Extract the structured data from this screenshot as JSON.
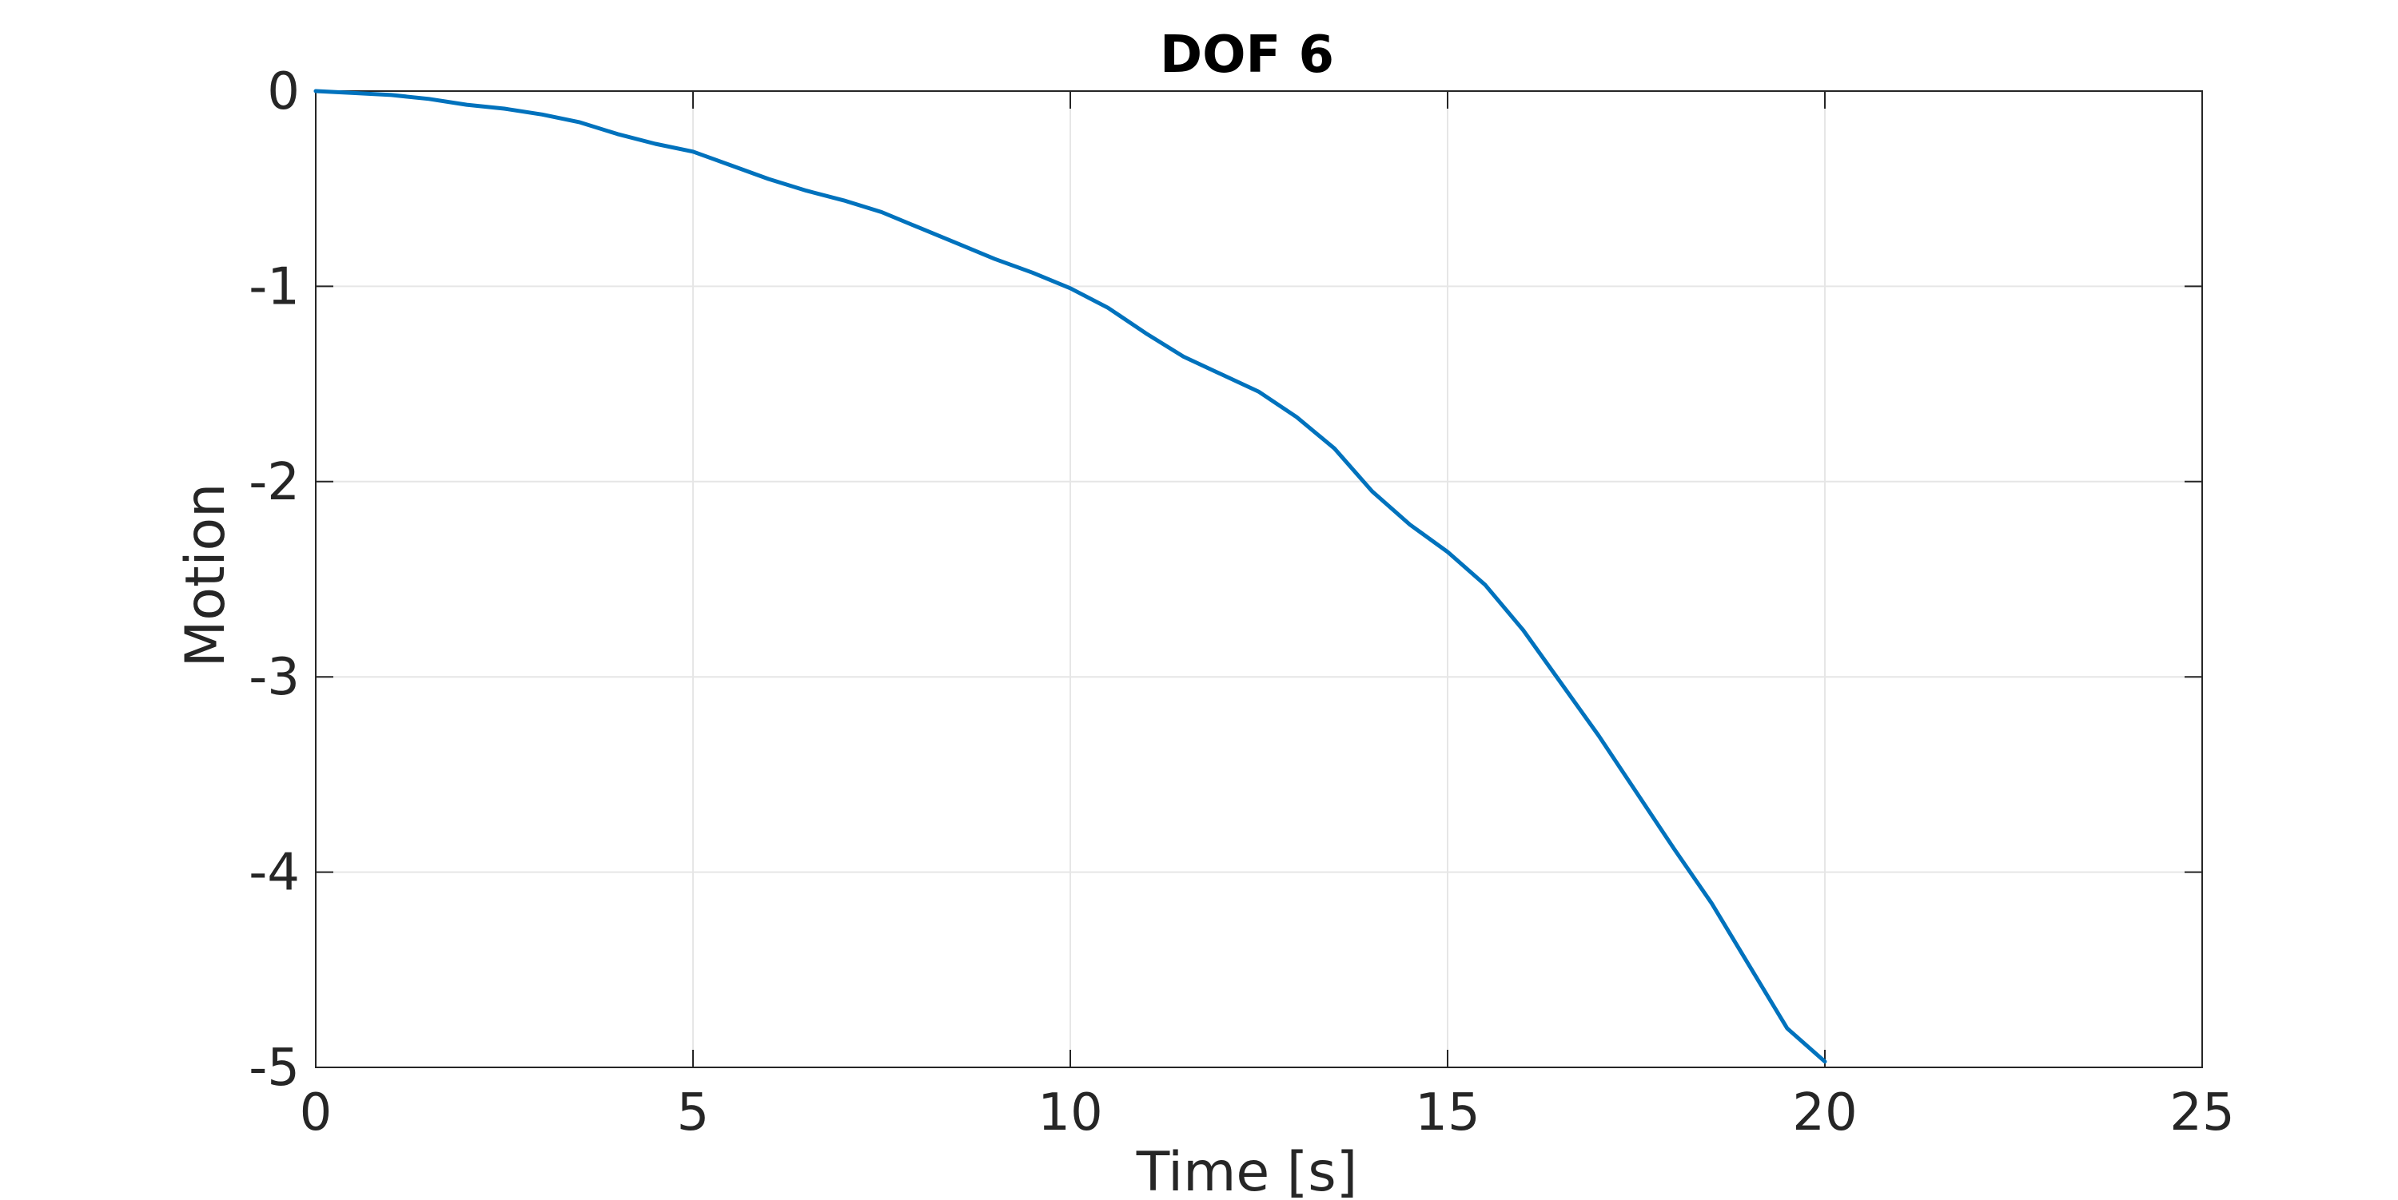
{
  "chart_data": {
    "type": "line",
    "title": "DOF 6",
    "xlabel": "Time [s]",
    "ylabel": "Motion",
    "xlim": [
      0,
      25
    ],
    "ylim": [
      -5,
      0
    ],
    "xticks": [
      0,
      5,
      10,
      15,
      20,
      25
    ],
    "yticks": [
      0,
      -1,
      -2,
      -3,
      -4,
      -5
    ],
    "xtick_labels": [
      "0",
      "5",
      "10",
      "15",
      "20",
      "25"
    ],
    "ytick_labels": [
      "0",
      "-1",
      "-2",
      "-3",
      "-4",
      "-5"
    ],
    "grid": true,
    "line_color": "#0072BD",
    "series": [
      {
        "x": [
          0,
          0.5,
          1,
          1.5,
          2,
          2.5,
          3,
          3.5,
          4,
          4.5,
          5,
          5.5,
          6,
          6.5,
          7,
          7.5,
          8,
          8.5,
          9,
          9.5,
          10,
          10.5,
          11,
          11.5,
          12,
          12.5,
          13,
          13.5,
          14,
          14.5,
          15,
          15.5,
          16,
          16.5,
          17,
          17.5,
          18,
          18.5,
          19,
          19.5,
          20
        ],
        "y": [
          0,
          -0.01,
          -0.02,
          -0.04,
          -0.07,
          -0.09,
          -0.12,
          -0.16,
          -0.22,
          -0.27,
          -0.31,
          -0.38,
          -0.45,
          -0.51,
          -0.56,
          -0.62,
          -0.7,
          -0.78,
          -0.86,
          -0.93,
          -1.01,
          -1.11,
          -1.24,
          -1.36,
          -1.45,
          -1.54,
          -1.67,
          -1.83,
          -2.05,
          -2.22,
          -2.36,
          -2.53,
          -2.76,
          -3.03,
          -3.3,
          -3.59,
          -3.88,
          -4.16,
          -4.48,
          -4.8,
          -4.97
        ]
      }
    ]
  }
}
